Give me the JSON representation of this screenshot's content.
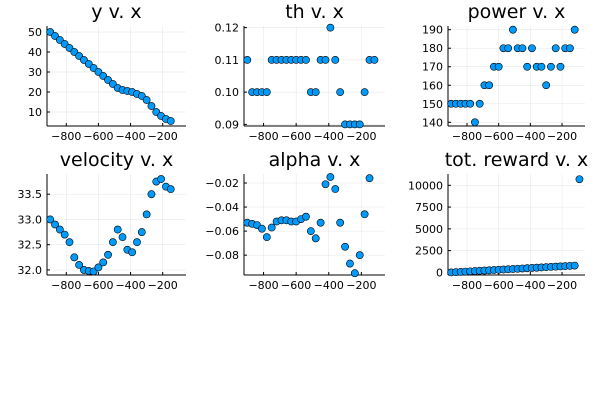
{
  "colors": {
    "marker": "#009AFA",
    "marker_edge": "#000000"
  },
  "chart_data": [
    {
      "type": "scatter",
      "title": "y v. x",
      "grid": true,
      "legend": "none",
      "xlim": [
        -920,
        -55
      ],
      "ylim": [
        3,
        53
      ],
      "xticks": [
        -800,
        -600,
        -400,
        -200
      ],
      "xtick_labels": [
        "−800",
        "−600",
        "−400",
        "−200"
      ],
      "yticks": [
        10,
        20,
        30,
        40,
        50
      ],
      "ytick_labels": [
        "10",
        "20",
        "30",
        "40",
        "50"
      ],
      "points": [
        [
          -900,
          50
        ],
        [
          -870,
          48
        ],
        [
          -840,
          46
        ],
        [
          -810,
          44
        ],
        [
          -780,
          42
        ],
        [
          -750,
          40
        ],
        [
          -720,
          38
        ],
        [
          -690,
          36
        ],
        [
          -660,
          34
        ],
        [
          -630,
          32
        ],
        [
          -600,
          30
        ],
        [
          -570,
          28
        ],
        [
          -540,
          26
        ],
        [
          -510,
          24
        ],
        [
          -480,
          22
        ],
        [
          -450,
          21
        ],
        [
          -420,
          20.5
        ],
        [
          -390,
          20
        ],
        [
          -360,
          19
        ],
        [
          -330,
          18
        ],
        [
          -300,
          16
        ],
        [
          -270,
          13
        ],
        [
          -240,
          10
        ],
        [
          -210,
          8
        ],
        [
          -180,
          6.5
        ],
        [
          -150,
          5.5
        ]
      ]
    },
    {
      "type": "scatter",
      "title": "th v. x",
      "grid": true,
      "legend": "none",
      "xlim": [
        -920,
        -55
      ],
      "ylim": [
        0.0895,
        0.1205
      ],
      "xticks": [
        -800,
        -600,
        -400,
        -200
      ],
      "xtick_labels": [
        "−800",
        "−600",
        "−400",
        "−200"
      ],
      "yticks": [
        0.09,
        0.1,
        0.11,
        0.12
      ],
      "ytick_labels": [
        "0.09",
        "0.10",
        "0.11",
        "0.12"
      ],
      "points": [
        [
          -900,
          0.11
        ],
        [
          -870,
          0.1
        ],
        [
          -840,
          0.1
        ],
        [
          -810,
          0.1
        ],
        [
          -780,
          0.1
        ],
        [
          -750,
          0.11
        ],
        [
          -720,
          0.11
        ],
        [
          -690,
          0.11
        ],
        [
          -660,
          0.11
        ],
        [
          -630,
          0.11
        ],
        [
          -600,
          0.11
        ],
        [
          -570,
          0.11
        ],
        [
          -540,
          0.11
        ],
        [
          -510,
          0.1
        ],
        [
          -480,
          0.1
        ],
        [
          -450,
          0.11
        ],
        [
          -420,
          0.11
        ],
        [
          -390,
          0.12
        ],
        [
          -360,
          0.11
        ],
        [
          -330,
          0.1
        ],
        [
          -300,
          0.09
        ],
        [
          -270,
          0.09
        ],
        [
          -240,
          0.09
        ],
        [
          -210,
          0.09
        ],
        [
          -180,
          0.1
        ],
        [
          -150,
          0.11
        ],
        [
          -120,
          0.11
        ]
      ]
    },
    {
      "type": "scatter",
      "title": "power v. x",
      "grid": true,
      "legend": "none",
      "xlim": [
        -920,
        -55
      ],
      "ylim": [
        138,
        192
      ],
      "xticks": [
        -800,
        -600,
        -400,
        -200
      ],
      "xtick_labels": [
        "−800",
        "−600",
        "−400",
        "−200"
      ],
      "yticks": [
        140,
        150,
        160,
        170,
        180,
        190
      ],
      "ytick_labels": [
        "140",
        "150",
        "160",
        "170",
        "180",
        "190"
      ],
      "points": [
        [
          -900,
          150
        ],
        [
          -870,
          150
        ],
        [
          -840,
          150
        ],
        [
          -810,
          150
        ],
        [
          -780,
          150
        ],
        [
          -750,
          140
        ],
        [
          -720,
          150
        ],
        [
          -690,
          160
        ],
        [
          -660,
          160
        ],
        [
          -630,
          170
        ],
        [
          -600,
          170
        ],
        [
          -570,
          180
        ],
        [
          -540,
          180
        ],
        [
          -510,
          190
        ],
        [
          -480,
          180
        ],
        [
          -450,
          180
        ],
        [
          -420,
          170
        ],
        [
          -390,
          180
        ],
        [
          -360,
          170
        ],
        [
          -330,
          170
        ],
        [
          -300,
          160
        ],
        [
          -270,
          170
        ],
        [
          -240,
          180
        ],
        [
          -210,
          170
        ],
        [
          -180,
          180
        ],
        [
          -150,
          180
        ],
        [
          -120,
          190
        ]
      ]
    },
    {
      "type": "scatter",
      "title": "velocity v. x",
      "grid": true,
      "legend": "none",
      "xlim": [
        -920,
        -55
      ],
      "ylim": [
        31.9,
        33.9
      ],
      "xticks": [
        -800,
        -600,
        -400,
        -200
      ],
      "xtick_labels": [
        "−800",
        "−600",
        "−400",
        "−200"
      ],
      "yticks": [
        32.0,
        32.5,
        33.0,
        33.5
      ],
      "ytick_labels": [
        "32.0",
        "32.5",
        "33.0",
        "33.5"
      ],
      "points": [
        [
          -900,
          33.0
        ],
        [
          -870,
          32.9
        ],
        [
          -840,
          32.8
        ],
        [
          -810,
          32.7
        ],
        [
          -780,
          32.55
        ],
        [
          -750,
          32.25
        ],
        [
          -720,
          32.1
        ],
        [
          -690,
          32.0
        ],
        [
          -660,
          31.98
        ],
        [
          -630,
          31.97
        ],
        [
          -600,
          32.05
        ],
        [
          -570,
          32.15
        ],
        [
          -540,
          32.3
        ],
        [
          -510,
          32.55
        ],
        [
          -480,
          32.8
        ],
        [
          -450,
          32.65
        ],
        [
          -420,
          32.4
        ],
        [
          -390,
          32.35
        ],
        [
          -360,
          32.55
        ],
        [
          -330,
          32.75
        ],
        [
          -300,
          33.1
        ],
        [
          -270,
          33.5
        ],
        [
          -240,
          33.75
        ],
        [
          -210,
          33.8
        ],
        [
          -180,
          33.65
        ],
        [
          -150,
          33.6
        ]
      ]
    },
    {
      "type": "scatter",
      "title": "alpha v. x",
      "grid": true,
      "legend": "none",
      "xlim": [
        -920,
        -55
      ],
      "ylim": [
        -0.0965,
        -0.0125
      ],
      "xticks": [
        -800,
        -600,
        -400,
        -200
      ],
      "xtick_labels": [
        "−800",
        "−600",
        "−400",
        "−200"
      ],
      "yticks": [
        -0.08,
        -0.06,
        -0.04,
        -0.02
      ],
      "ytick_labels": [
        "−0.08",
        "−0.06",
        "−0.04",
        "−0.02"
      ],
      "points": [
        [
          -900,
          -0.053
        ],
        [
          -870,
          -0.054
        ],
        [
          -840,
          -0.055
        ],
        [
          -810,
          -0.058
        ],
        [
          -780,
          -0.065
        ],
        [
          -750,
          -0.057
        ],
        [
          -720,
          -0.052
        ],
        [
          -690,
          -0.051
        ],
        [
          -660,
          -0.051
        ],
        [
          -630,
          -0.052
        ],
        [
          -600,
          -0.052
        ],
        [
          -570,
          -0.05
        ],
        [
          -540,
          -0.048
        ],
        [
          -510,
          -0.06
        ],
        [
          -480,
          -0.066
        ],
        [
          -450,
          -0.053
        ],
        [
          -420,
          -0.021
        ],
        [
          -390,
          -0.015
        ],
        [
          -360,
          -0.025
        ],
        [
          -330,
          -0.053
        ],
        [
          -300,
          -0.073
        ],
        [
          -270,
          -0.087
        ],
        [
          -240,
          -0.095
        ],
        [
          -210,
          -0.08
        ],
        [
          -180,
          -0.046
        ],
        [
          -150,
          -0.016
        ]
      ]
    },
    {
      "type": "scatter",
      "title": "tot. reward v. x",
      "grid": true,
      "legend": "none",
      "xlim": [
        -920,
        -55
      ],
      "ylim": [
        -300,
        11300
      ],
      "xticks": [
        -800,
        -600,
        -400,
        -200
      ],
      "xtick_labels": [
        "−800",
        "−600",
        "−400",
        "−200"
      ],
      "yticks": [
        0,
        2500,
        5000,
        7500,
        10000
      ],
      "ytick_labels": [
        "0",
        "2500",
        "5000",
        "7500",
        "10000"
      ],
      "points": [
        [
          -900,
          0
        ],
        [
          -870,
          30
        ],
        [
          -840,
          60
        ],
        [
          -810,
          90
        ],
        [
          -780,
          120
        ],
        [
          -750,
          150
        ],
        [
          -720,
          180
        ],
        [
          -690,
          210
        ],
        [
          -660,
          240
        ],
        [
          -630,
          270
        ],
        [
          -600,
          300
        ],
        [
          -570,
          330
        ],
        [
          -540,
          360
        ],
        [
          -510,
          390
        ],
        [
          -480,
          420
        ],
        [
          -450,
          450
        ],
        [
          -420,
          480
        ],
        [
          -390,
          510
        ],
        [
          -360,
          540
        ],
        [
          -330,
          570
        ],
        [
          -300,
          600
        ],
        [
          -270,
          630
        ],
        [
          -240,
          660
        ],
        [
          -210,
          690
        ],
        [
          -180,
          720
        ],
        [
          -150,
          750
        ],
        [
          -120,
          780
        ],
        [
          -90,
          10700
        ]
      ]
    }
  ]
}
